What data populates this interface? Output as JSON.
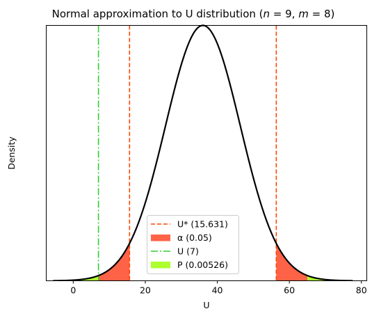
{
  "chart_data": {
    "type": "area",
    "title_prefix": "Normal approximation to U distribution (",
    "title_n_var": "n",
    "title_n_eq": " = 9, ",
    "title_m_var": "m",
    "title_m_eq": " = 8)",
    "xlabel": "U",
    "ylabel": "Density",
    "xlim": [
      -7.5,
      81.5
    ],
    "xticks": [
      0,
      20,
      40,
      60,
      80
    ],
    "y_ticks_shown": false,
    "distribution": {
      "mean": 36,
      "sd": 10.39,
      "x_range": [
        -5.6,
        77.6
      ]
    },
    "critical_value": 15.631,
    "critical_value_upper": 56.369,
    "observed_u": 7,
    "observed_u_upper": 65,
    "colors": {
      "curve": "#000000",
      "critical": "#ff4500",
      "alpha_fill": "#ff6347",
      "observed": "#32cd32",
      "p_fill": "#adff2f"
    },
    "legend": {
      "placement": "lower-center",
      "items": [
        {
          "label": "U* (15.631)",
          "style": "dashed",
          "color": "#ff4500"
        },
        {
          "label": "α (0.05)",
          "style": "patch",
          "color": "#ff6347"
        },
        {
          "label": "U (7)",
          "style": "dashdot",
          "color": "#32cd32"
        },
        {
          "label": "P (0.00526)",
          "style": "patch",
          "color": "#adff2f"
        }
      ]
    }
  }
}
